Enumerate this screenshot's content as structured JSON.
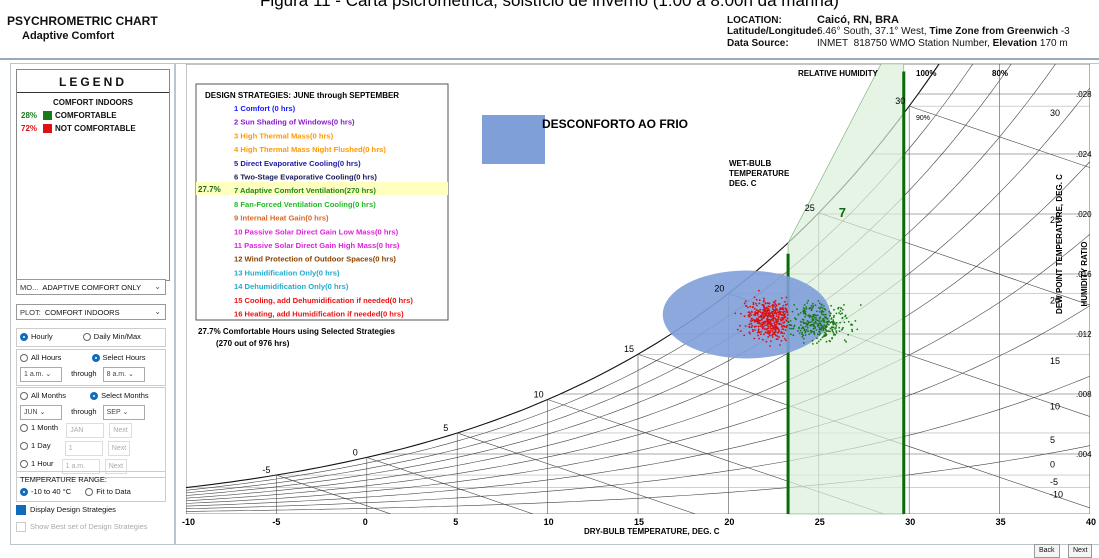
{
  "caption": "Figura 11 - Carta psicrométrica, solstício de inverno (1:00 a 8:00h da manhã)",
  "header": {
    "title": "PSYCHROMETRIC CHART",
    "subtitle": "Adaptive Comfort",
    "location_key": "LOCATION:",
    "location_val": "Caicó, RN, BRA",
    "latlon_key": "Latitude/Longitude:",
    "latlon_val": "6.46° South, 37.1° West,",
    "tz_key": "Time Zone from Greenwich",
    "tz_val": "-3",
    "source_key": "Data Source:",
    "source_val": "INMET",
    "wmo_val": "818750 WMO Station Number,",
    "elev_key": "Elevation",
    "elev_val": "170 m"
  },
  "legend": {
    "title": "LEGEND",
    "comfort_heading": "COMFORT INDOORS",
    "comfortable_pct": "28%",
    "comfortable_label": "COMFORTABLE",
    "not_comfortable_pct": "72%",
    "not_comfortable_label": "NOT COMFORTABLE",
    "comfortable_color": "#1a7a1a",
    "not_comfortable_color": "#dd1111"
  },
  "controls": {
    "mode_label": "MO...",
    "mode_value": "ADAPTIVE COMFORT ONLY",
    "plot_label": "PLOT:",
    "plot_value": "COMFORT INDOORS",
    "hourly": "Hourly",
    "daily": "Daily Min/Max",
    "all_hours": "All Hours",
    "select_hours": "Select Hours",
    "hour_from": "1 a.m.",
    "through": "through",
    "hour_to": "8 a.m.",
    "all_months": "All Months",
    "select_months": "Select Months",
    "month_from": "JUN",
    "month_to": "SEP",
    "one_month": "1 Month",
    "one_month_val": "JAN",
    "one_day": "1 Day",
    "one_day_val": "1",
    "one_hour": "1 Hour",
    "one_hour_val": "1 a.m.",
    "next": "Next",
    "temp_range_label": "TEMPERATURE RANGE:",
    "temp_range_a": "-10 to 40 °C",
    "temp_range_b": "Fit to Data",
    "display_strategies": "Display Design Strategies",
    "show_best": "Show Best set of Design Strategies"
  },
  "strategies": {
    "heading": "DESIGN STRATEGIES: JUNE through SEPTEMBER",
    "items": [
      {
        "label": "1 Comfort (0 hrs)",
        "color": "#1a1aff"
      },
      {
        "label": "2 Sun Shading of Windows(0 hrs)",
        "color": "#8a1acc"
      },
      {
        "label": "3 High Thermal Mass(0 hrs)",
        "color": "#ff9900"
      },
      {
        "label": "4 High Thermal Mass Night Flushed(0 hrs)",
        "color": "#ff9900"
      },
      {
        "label": "5 Direct Evaporative Cooling(0 hrs)",
        "color": "#1a1aaa"
      },
      {
        "label": "6 Two-Stage Evaporative Cooling(0 hrs)",
        "color": "#1a1a55"
      },
      {
        "label": "7 Adaptive Comfort Ventilation(270 hrs)",
        "color": "#1a8a1a",
        "pct": "27.7%"
      },
      {
        "label": "8 Fan-Forced Ventilation Cooling(0 hrs)",
        "color": "#22bb22"
      },
      {
        "label": "9 Internal Heat Gain(0 hrs)",
        "color": "#dd6622"
      },
      {
        "label": "10 Passive Solar Direct Gain Low Mass(0 hrs)",
        "color": "#dd22dd"
      },
      {
        "label": "11 Passive Solar Direct Gain High Mass(0 hrs)",
        "color": "#dd22dd"
      },
      {
        "label": "12 Wind Protection of Outdoor Spaces(0 hrs)",
        "color": "#884400"
      },
      {
        "label": "13 Humidification Only(0 hrs)",
        "color": "#22aacc"
      },
      {
        "label": "14 Dehumidification Only(0 hrs)",
        "color": "#22aacc"
      },
      {
        "label": "15 Cooling, add Dehumidification if needed(0 hrs)",
        "color": "#ee1111"
      },
      {
        "label": "16 Heating, add Humidification if needed(0 hrs)",
        "color": "#ee1111"
      }
    ],
    "summary1": "27.7% Comfortable Hours using Selected Strategies",
    "summary2": "(270 out of 976 hrs)"
  },
  "annotation": {
    "text": "DESCONFORTO AO FRIO",
    "color": "#7f9fd9"
  },
  "chart_data": {
    "type": "scatter",
    "xlabel": "DRY-BULB TEMPERATURE, DEG. C",
    "ylabel": "HUMIDITY RATIO",
    "ylabel2": "DEW POINT TEMPERATURE, DEG. C",
    "top_label": "RELATIVE HUMIDITY",
    "rh_100": "100%",
    "rh_90": "90%",
    "rh_80": "80%",
    "wetbulb_label": [
      "WET-BULB",
      "TEMPERATURE",
      "DEG. C"
    ],
    "zone_label": "7",
    "x_ticks": [
      "-10",
      "-5",
      "0",
      "5",
      "10",
      "15",
      "20",
      "25",
      "30",
      "35",
      "40"
    ],
    "xlim": [
      -10,
      40
    ],
    "y_ticks": [
      ".004",
      ".008",
      ".012",
      ".016",
      ".020",
      ".024",
      ".028"
    ],
    "ylim": [
      0,
      0.03
    ],
    "dewpoint_ticks": [
      "-10",
      "-5",
      "0",
      "5",
      "10",
      "15",
      "20",
      "25",
      "30"
    ],
    "wetbulb_ticks": [
      "-5",
      "0",
      "5",
      "10",
      "15",
      "20",
      "25",
      "30"
    ],
    "comfort_zone": {
      "x_min": 23.3,
      "x_max": 29.7
    },
    "cloud": {
      "red": {
        "x_center": 22.5,
        "y_center": 0.013,
        "x_spread": 1.6,
        "y_spread": 0.0012
      },
      "green": {
        "x_center": 25.0,
        "y_center": 0.0128,
        "x_spread": 1.6,
        "y_spread": 0.0012
      }
    }
  }
}
